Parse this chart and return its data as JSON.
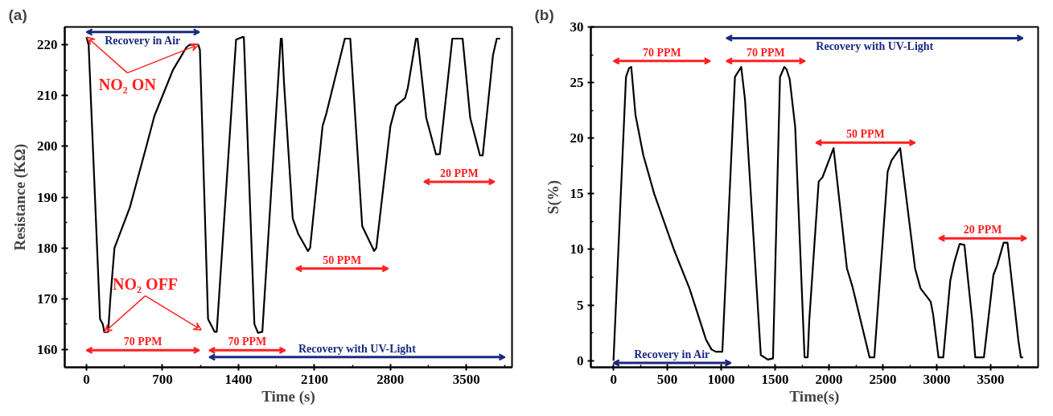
{
  "chart_data": [
    {
      "type": "line",
      "title": "(a)",
      "xlabel": "Time (s)",
      "ylabel": "Resistance (KΩ)",
      "xlim": [
        -200,
        3920
      ],
      "ylim": [
        156.5,
        223.5
      ],
      "xticks": [
        0,
        700,
        1400,
        2100,
        2800,
        3500
      ],
      "yticks": [
        160,
        170,
        180,
        190,
        200,
        210,
        220
      ],
      "series": [
        {
          "color": "#000000",
          "x": [
            0,
            20,
            125,
            150,
            165,
            200,
            220,
            258,
            400,
            553,
            626,
            796,
            921,
            950,
            1030,
            1045,
            1120,
            1180,
            1200,
            1378,
            1400,
            1437,
            1450,
            1547,
            1580,
            1620,
            1790,
            1800,
            1820,
            1900,
            1950,
            2040,
            2060,
            2175,
            2210,
            2380,
            2430,
            2540,
            2650,
            2670,
            2800,
            2850,
            2935,
            2960,
            3035,
            3050,
            3130,
            3220,
            3255,
            3370,
            3465,
            3535,
            3625,
            3650,
            3745,
            3780,
            3810
          ],
          "values": [
            221.5,
            220,
            166,
            165,
            163.4,
            163.5,
            170,
            180,
            188,
            200.1,
            206,
            215,
            219.5,
            220,
            220,
            219,
            166,
            163.5,
            163.5,
            221,
            221.2,
            221.5,
            221.5,
            165,
            163.3,
            163.5,
            221.2,
            221.2,
            212.4,
            185.8,
            182.8,
            179.4,
            180,
            204,
            206.5,
            221.2,
            221.2,
            184.3,
            179.4,
            180,
            204,
            208,
            209.5,
            211.5,
            221.2,
            221.2,
            205.6,
            198.4,
            198.5,
            221.2,
            221.2,
            205.6,
            198.2,
            198.2,
            218,
            221.2,
            221.2
          ]
        }
      ],
      "annotations": [
        {
          "text": "NO₂ ON",
          "x": 1030,
          "y": 220
        },
        {
          "text": "NO₂ OFF",
          "x": 165,
          "y": 163.4
        },
        "Recovery in Air",
        "70 PPM",
        "70 PPM",
        "50 PPM",
        "20 PPM",
        "Recovery with UV-Light"
      ]
    },
    {
      "type": "line",
      "title": "(b)",
      "xlabel": "Time(s)",
      "ylabel": "S(%)",
      "xlim": [
        -210,
        3940
      ],
      "ylim": [
        -0.6,
        30
      ],
      "xticks": [
        0,
        500,
        1000,
        1500,
        2000,
        2500,
        3000,
        3500
      ],
      "yticks": [
        0,
        5,
        10,
        15,
        20,
        25,
        30
      ],
      "series": [
        {
          "color": "#000000",
          "x": [
            0,
            116,
            145,
            165,
            204,
            276,
            378,
            560,
            705,
            858,
            910,
            950,
            1010,
            1127,
            1185,
            1220,
            1367,
            1432,
            1480,
            1545,
            1585,
            1605,
            1635,
            1686,
            1773,
            1802,
            1817,
            1904,
            1940,
            2042,
            2166,
            2216,
            2376,
            2420,
            2544,
            2580,
            2660,
            2798,
            2849,
            2943,
            2965,
            3016,
            3060,
            3125,
            3161,
            3212,
            3256,
            3328,
            3357,
            3437,
            3525,
            3561,
            3620,
            3656,
            3757,
            3780,
            3800
          ],
          "values": [
            0,
            25.5,
            26.3,
            26.4,
            22.1,
            18.5,
            15,
            10,
            6.5,
            1.9,
            1.0,
            0.8,
            0.8,
            25.5,
            26.4,
            23.5,
            0.5,
            0.1,
            0.2,
            25.5,
            26.4,
            26.2,
            25.3,
            21,
            0.3,
            0.3,
            3.7,
            16.1,
            16.5,
            19.1,
            8.3,
            6.7,
            0.3,
            0.3,
            17,
            18,
            19.1,
            8.3,
            6.5,
            5.3,
            4.2,
            0.3,
            0.3,
            7.2,
            8.8,
            10.5,
            10.4,
            3.7,
            0.3,
            0.3,
            7.7,
            8.6,
            10.6,
            10.6,
            1.8,
            0.3,
            0.3
          ]
        }
      ],
      "annotations": [
        "70 PPM",
        "70 PPM",
        "Recovery with UV-Light",
        "50 PPM",
        "20 PPM",
        "Recovery in Air"
      ]
    }
  ]
}
